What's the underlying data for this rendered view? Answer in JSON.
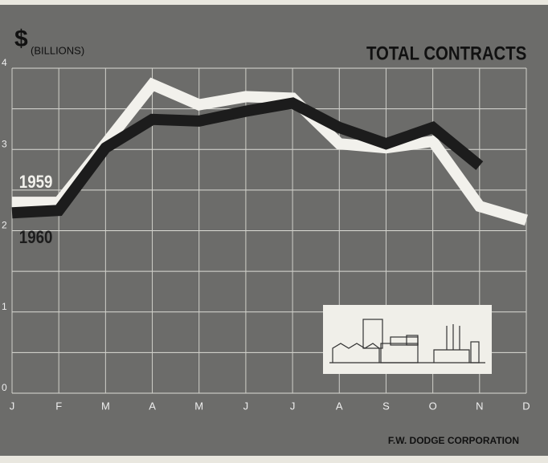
{
  "chart_data": {
    "type": "line",
    "title": "TOTAL CONTRACTS",
    "y_symbol": "$",
    "y_label": "(BILLIONS)",
    "source": "F.W. DODGE CORPORATION",
    "categories": [
      "J",
      "F",
      "M",
      "A",
      "M",
      "J",
      "J",
      "A",
      "S",
      "O",
      "N",
      "D"
    ],
    "series": [
      {
        "name": "1959",
        "color": "#f2f1ec",
        "values": [
          2.35,
          2.35,
          3.07,
          3.8,
          3.55,
          3.65,
          3.63,
          3.07,
          3.02,
          3.1,
          2.3,
          2.13
        ]
      },
      {
        "name": "1960",
        "color": "#1c1c1c",
        "values": [
          2.22,
          2.25,
          3.02,
          3.37,
          3.35,
          3.47,
          3.57,
          3.27,
          3.07,
          3.27,
          2.8,
          null
        ]
      }
    ],
    "ylim": [
      0,
      4
    ],
    "yticks": [
      0,
      1,
      2,
      3,
      4
    ],
    "minor_grid": [
      0.5,
      1.5,
      2.5,
      3.5
    ],
    "grid": true
  }
}
